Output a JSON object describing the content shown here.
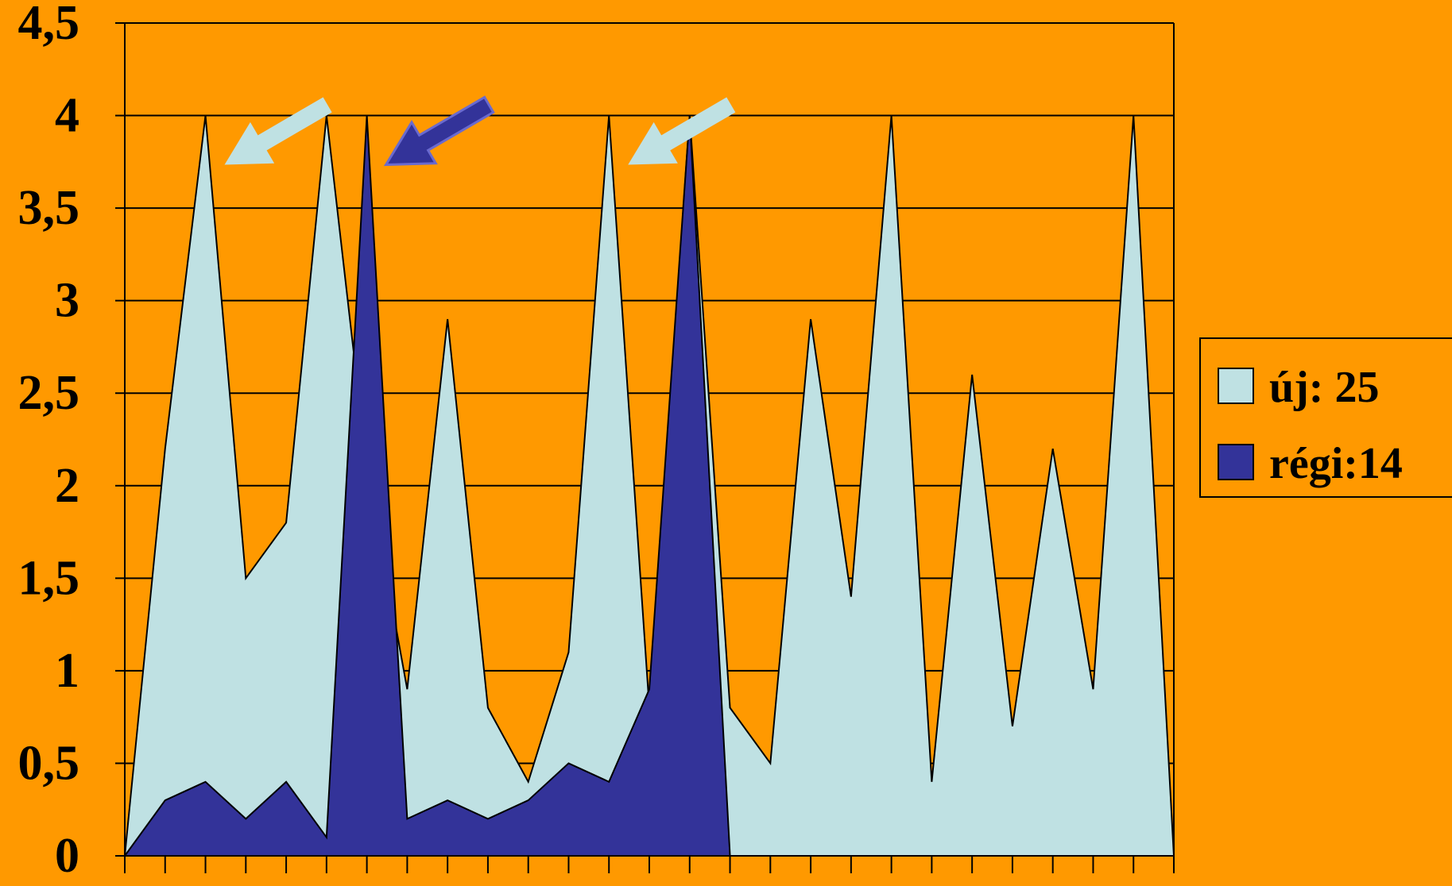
{
  "chart_data": {
    "type": "area",
    "x": [
      1,
      2,
      3,
      4,
      5,
      6,
      7,
      8,
      9,
      10,
      11,
      12,
      13,
      14,
      15,
      16,
      17,
      18,
      19,
      20,
      21,
      22,
      23,
      24,
      25,
      26,
      27
    ],
    "series": [
      {
        "name": "új: 25",
        "color": "#BFE1E3",
        "values": [
          0,
          2.2,
          4,
          1.5,
          1.8,
          4,
          2.1,
          0.9,
          2.9,
          0.8,
          0.4,
          1.1,
          4,
          0.8,
          4,
          0.8,
          0.5,
          2.9,
          1.4,
          4,
          0.4,
          2.6,
          0.7,
          2.2,
          0.9,
          4,
          0
        ]
      },
      {
        "name": "régi:14",
        "color": "#333399",
        "values": [
          0,
          0.3,
          0.4,
          0.2,
          0.4,
          0.1,
          4,
          0.2,
          0.3,
          0.2,
          0.3,
          0.5,
          0.4,
          0.9,
          4,
          0,
          0,
          0,
          0,
          0,
          0,
          0,
          0,
          0,
          0,
          0,
          0
        ]
      }
    ],
    "y_ticks": [
      "0",
      "0,5",
      "1",
      "1,5",
      "2",
      "2,5",
      "3",
      "3,5",
      "4",
      "4,5"
    ],
    "ylim": [
      0,
      4.5
    ],
    "grid": true,
    "legend_position": "right",
    "annotations": [
      {
        "type": "arrow",
        "color": "#BFE1E3",
        "points_to_x": 3,
        "points_to_y": 4
      },
      {
        "type": "arrow",
        "color": "#333399",
        "points_to_x": 7,
        "points_to_y": 4
      },
      {
        "type": "arrow",
        "color": "#BFE1E3",
        "points_to_x": 13,
        "points_to_y": 4
      }
    ]
  }
}
